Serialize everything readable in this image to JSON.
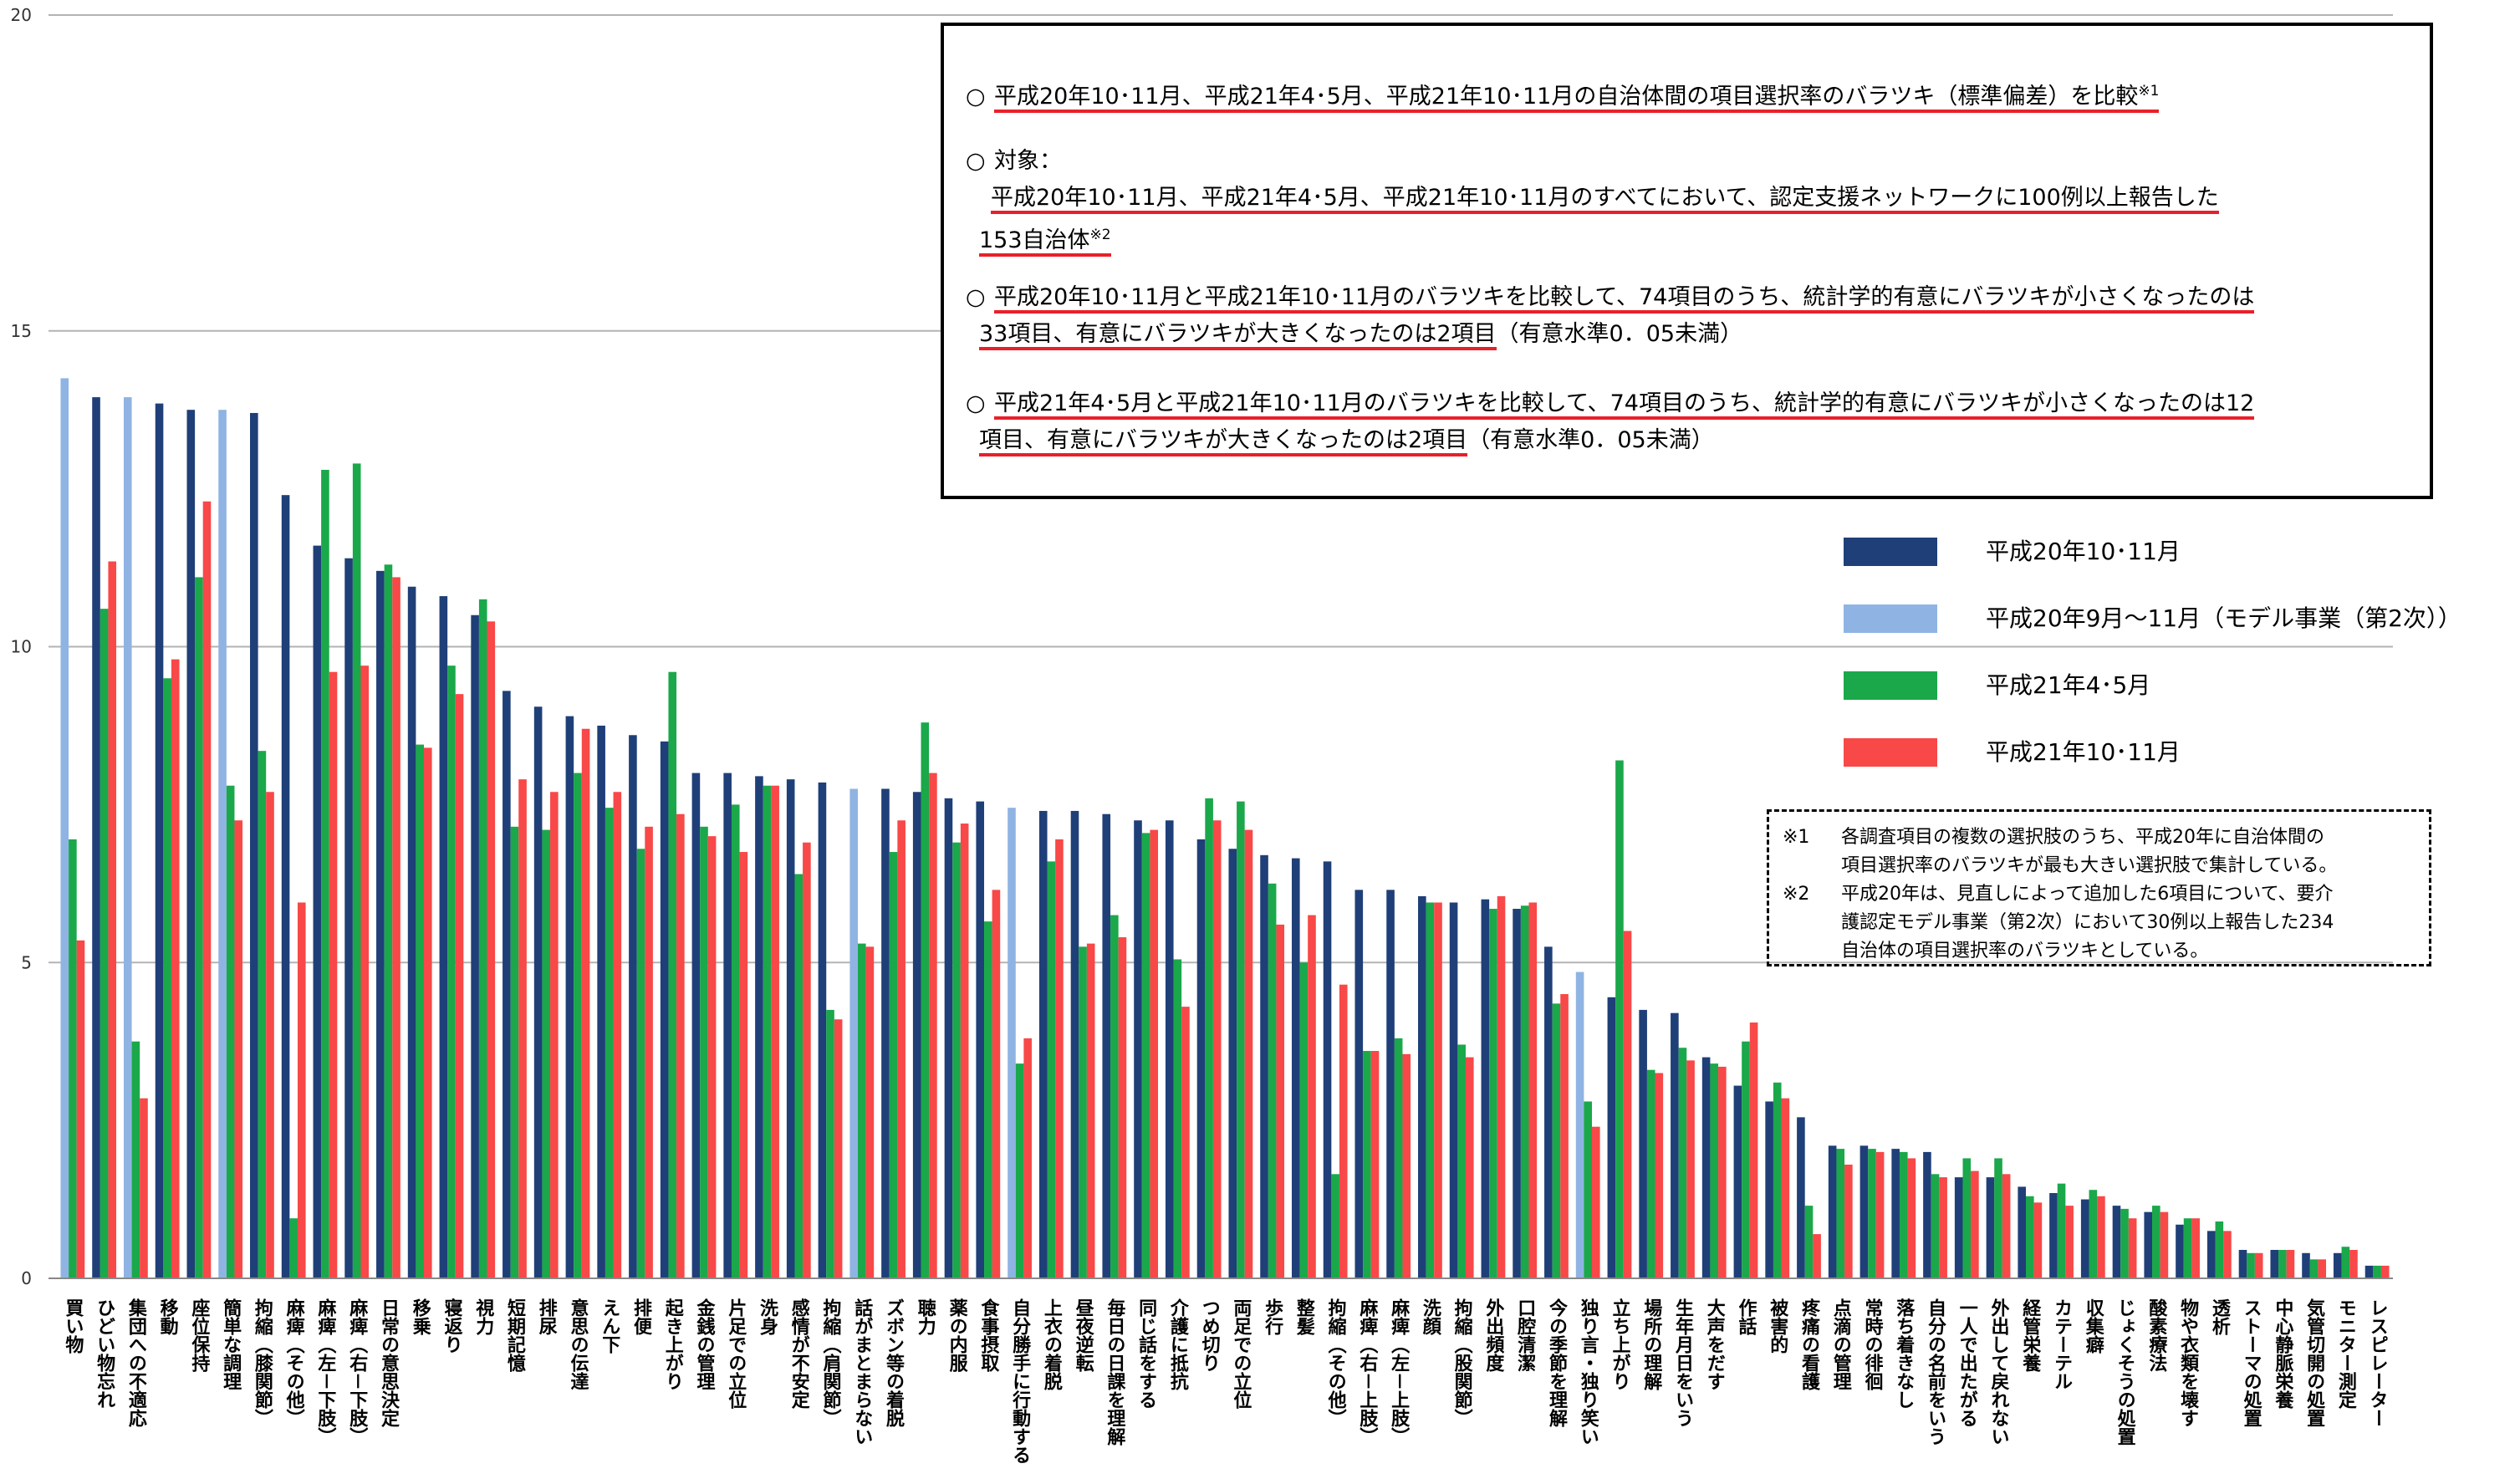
{
  "colors": {
    "s1": "#1f3f78",
    "s2": "#8fb4e3",
    "s3": "#1aa84a",
    "s4": "#f84848",
    "grid": "#b3b3b3"
  },
  "chart_data": {
    "type": "bar",
    "ylim": [
      0,
      20
    ],
    "yticks": [
      "0",
      "5",
      "10",
      "15",
      "20"
    ],
    "grid": true,
    "categories": [
      "買い物",
      "ひどい物忘れ",
      "集団への不適応",
      "移動",
      "座位保持",
      "簡単な調理",
      "拘縮（膝関節）",
      "麻痺（その他）",
      "麻痺（左－下肢）",
      "麻痺（右－下肢）",
      "日常の意思決定",
      "移乗",
      "寝返り",
      "視力",
      "短期記憶",
      "排尿",
      "意思の伝達",
      "えん下",
      "排便",
      "起き上がり",
      "金銭の管理",
      "片足での立位",
      "洗身",
      "感情が不安定",
      "拘縮（肩関節）",
      "話がまとまらない",
      "ズボン等の着脱",
      "聴力",
      "薬の内服",
      "食事摂取",
      "自分勝手に行動する",
      "上衣の着脱",
      "昼夜逆転",
      "毎日の日課を理解",
      "同じ話をする",
      "介護に抵抗",
      "つめ切り",
      "両足での立位",
      "歩行",
      "整髪",
      "拘縮（その他）",
      "麻痺（右－上肢）",
      "麻痺（左－上肢）",
      "洗顔",
      "拘縮（股関節）",
      "外出頻度",
      "口腔清潔",
      "今の季節を理解",
      "独り言・独り笑い",
      "立ち上がり",
      "場所の理解",
      "生年月日をいう",
      "大声をだす",
      "作話",
      "被害的",
      "疼痛の看護",
      "点滴の管理",
      "常時の徘徊",
      "落ち着きなし",
      "自分の名前をいう",
      "一人で出たがる",
      "外出して戻れない",
      "経管栄養",
      "カテーテル",
      "収集癖",
      "じょくそうの処置",
      "酸素療法",
      "物や衣類を壊す",
      "透析",
      "ストーマの処置",
      "中心静脈栄養",
      "気管切開の処置",
      "モニター測定",
      "レスピレーター"
    ],
    "series": [
      {
        "name": "平成20年10･11月",
        "values": [
          null,
          13.95,
          null,
          13.85,
          13.75,
          null,
          13.7,
          12.4,
          11.6,
          11.4,
          11.2,
          10.95,
          10.8,
          10.5,
          9.3,
          9.05,
          8.9,
          8.75,
          8.6,
          8.5,
          8.0,
          8.0,
          7.95,
          7.9,
          7.85,
          null,
          7.75,
          7.7,
          7.6,
          7.55,
          null,
          7.4,
          7.4,
          7.35,
          7.25,
          7.25,
          6.95,
          6.8,
          6.7,
          6.65,
          6.6,
          6.15,
          6.15,
          6.05,
          5.95,
          6.0,
          5.85,
          5.25,
          null,
          4.45,
          4.25,
          4.2,
          3.5,
          3.05,
          2.8,
          2.55,
          2.1,
          2.1,
          2.05,
          2.0,
          1.6,
          1.6,
          1.45,
          1.35,
          1.25,
          1.15,
          1.05,
          0.85,
          0.75,
          0.45,
          0.45,
          0.4,
          0.4,
          0.2
        ]
      },
      {
        "name": "平成20年9月～11月（モデル事業（第2次））",
        "values": [
          14.25,
          null,
          13.95,
          null,
          null,
          13.75,
          null,
          null,
          null,
          null,
          null,
          null,
          null,
          null,
          null,
          null,
          null,
          null,
          null,
          null,
          null,
          null,
          null,
          null,
          null,
          7.75,
          null,
          null,
          null,
          null,
          7.45,
          null,
          null,
          null,
          null,
          null,
          null,
          null,
          null,
          null,
          null,
          null,
          null,
          null,
          null,
          null,
          null,
          null,
          4.85,
          null,
          null,
          null,
          null,
          null,
          null,
          null,
          null,
          null,
          null,
          null,
          null,
          null,
          null,
          null,
          null,
          null,
          null,
          null,
          null,
          null,
          null,
          null,
          null,
          null
        ]
      },
      {
        "name": "平成21年4･5月",
        "values": [
          6.95,
          10.6,
          3.75,
          9.5,
          11.1,
          7.8,
          8.35,
          0.95,
          12.8,
          12.9,
          11.3,
          8.45,
          9.7,
          10.75,
          7.15,
          7.1,
          8.0,
          7.45,
          6.8,
          9.6,
          7.15,
          7.5,
          7.8,
          6.4,
          4.25,
          5.3,
          6.75,
          8.8,
          6.9,
          5.65,
          3.4,
          6.6,
          5.25,
          5.75,
          7.05,
          5.05,
          7.6,
          7.55,
          6.25,
          5.0,
          1.65,
          3.6,
          3.8,
          5.95,
          3.7,
          5.85,
          5.9,
          4.35,
          2.8,
          8.2,
          3.3,
          3.65,
          3.4,
          3.75,
          3.1,
          1.15,
          2.05,
          2.05,
          2.0,
          1.65,
          1.9,
          1.9,
          1.3,
          1.5,
          1.4,
          1.1,
          1.15,
          0.95,
          0.9,
          0.4,
          0.45,
          0.3,
          0.5,
          0.2
        ]
      },
      {
        "name": "平成21年10･11月",
        "values": [
          5.35,
          11.35,
          2.85,
          9.8,
          12.3,
          7.25,
          7.7,
          5.95,
          9.6,
          9.7,
          11.1,
          8.4,
          9.25,
          10.4,
          7.9,
          7.7,
          8.7,
          7.7,
          7.15,
          7.35,
          7.0,
          6.75,
          7.8,
          6.9,
          4.1,
          5.25,
          7.25,
          8.0,
          7.2,
          6.15,
          3.8,
          6.95,
          5.3,
          5.4,
          7.1,
          4.3,
          7.25,
          7.1,
          5.6,
          5.75,
          4.65,
          3.6,
          3.55,
          5.95,
          3.5,
          6.05,
          5.95,
          4.5,
          2.4,
          5.5,
          3.25,
          3.45,
          3.35,
          4.05,
          2.85,
          0.7,
          1.8,
          2.0,
          1.9,
          1.6,
          1.7,
          1.65,
          1.2,
          1.15,
          1.3,
          0.95,
          1.05,
          0.95,
          0.75,
          0.4,
          0.45,
          0.3,
          0.45,
          0.2
        ]
      }
    ]
  },
  "notes": {
    "item1": {
      "circle": "○",
      "text": "平成20年10･11月、平成21年4･5月、平成21年10･11月の自治体間の項目選択率のバラツキ（標準偏差）を比較",
      "sup": "※1"
    },
    "item2": {
      "circle": "○",
      "label": "対象：",
      "text_a": "平成20年10･11月、平成21年4･5月、平成21年10･11月のすべてにおいて、認定支援ネットワークに100例以上報告した",
      "text_b": "153自治体",
      "sup": "※2"
    },
    "item3": {
      "circle": "○",
      "line1": "平成20年10･11月と平成21年10･11月のバラツキを比較して、74項目のうち、統計学的有意にバラツキが小さくなったのは",
      "line2a": "33項目、有意にバラツキが大きくなったのは2項目",
      "line2b": "（有意水準0．05未満）"
    },
    "item4": {
      "circle": "○",
      "line1": "平成21年4･5月と平成21年10･11月のバラツキを比較して、74項目のうち、統計学的有意にバラツキが小さくなったのは12",
      "line2a": "項目、有意にバラツキが大きくなったのは2項目",
      "line2b": "（有意水準0．05未満）"
    }
  },
  "footnotes": {
    "fn1_mark": "※1",
    "fn1_line1": "各調査項目の複数の選択肢のうち、平成20年に自治体間の",
    "fn1_line2": "項目選択率のバラツキが最も大きい選択肢で集計している。",
    "fn2_mark": "※2",
    "fn2_line1": "平成20年は、見直しによって追加した6項目について、要介",
    "fn2_line2": "護認定モデル事業（第2次）において30例以上報告した234",
    "fn2_line3": "自治体の項目選択率のバラツキとしている。"
  }
}
